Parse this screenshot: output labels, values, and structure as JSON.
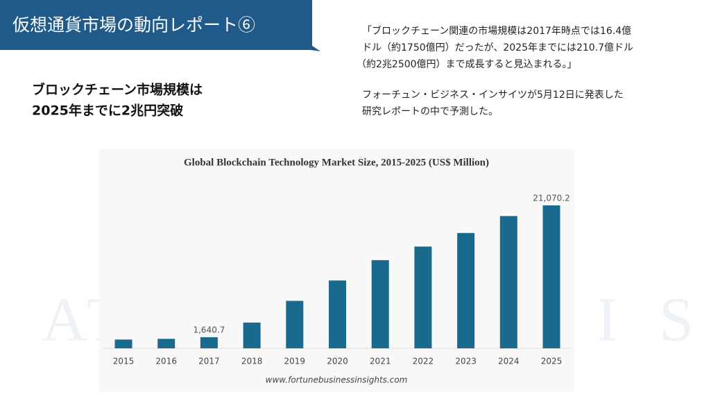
{
  "header": {
    "title": "仮想通貨市場の動向レポート⑥"
  },
  "headline": [
    "ブロックチェーン市場規模は",
    "2025年までに2兆円突破"
  ],
  "quote": [
    "「ブロックチェーン関連の市場規模は2017年時点では16.4億",
    "ドル（約1750億円）だったが、2025年までには210.7億ドル",
    "（約2兆2500億円）まで成長すると見込まれる。」"
  ],
  "note": [
    "フォーチュン・ビジネス・インサイツが5月12日に発表した",
    "研究レポートの中で予測した。"
  ],
  "watermark": [
    "A",
    "T",
    "I",
    "S"
  ],
  "chart_data": {
    "type": "bar",
    "title": "Global Blockchain Technology Market Size, 2015-2025 (US$ Million)",
    "categories": [
      "2015",
      "2016",
      "2017",
      "2018",
      "2019",
      "2020",
      "2021",
      "2022",
      "2023",
      "2024",
      "2025"
    ],
    "values": [
      1300,
      1400,
      1640.7,
      3800,
      7000,
      10000,
      13000,
      15000,
      17000,
      19500,
      21070.2
    ],
    "value_labels": [
      null,
      null,
      "1,640.7",
      null,
      null,
      null,
      null,
      null,
      null,
      null,
      "21,070.2"
    ],
    "color": "#1a6a8e",
    "source": "www.fortunebusinessinsights.com"
  }
}
